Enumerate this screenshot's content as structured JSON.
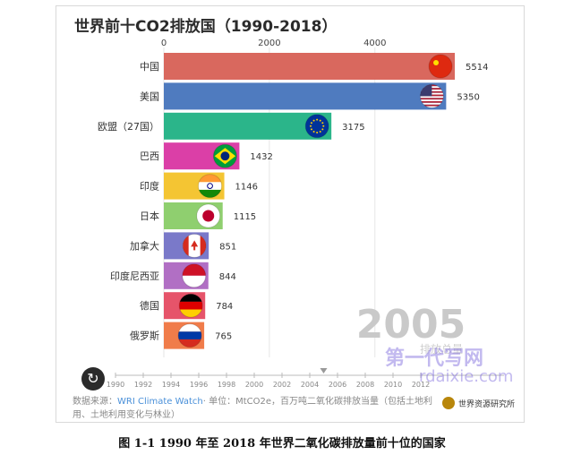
{
  "title": "世界前十CO2排放国（1990-2018）",
  "current_year": "2005",
  "current_year_subtitle": "排放总量",
  "source_prefix": "数据来源：",
  "source_link": "WRI Climate Watch",
  "source_suffix": "· 单位：MtCO2e，百万吨二氧化碳排放当量（包括土地利用、土地利用变化与林业）",
  "logo_text": "世界资源研究所",
  "watermark": "第一代写网",
  "watermark_url": "rdaixie.com",
  "caption": "图 1-1 1990 年至 2018 年世界二氧化碳排放量前十位的国家",
  "controls": {
    "play_icon": "↻"
  },
  "chart_data": {
    "type": "bar",
    "orientation": "horizontal",
    "categories": [
      "中国",
      "美国",
      "欧盟（27国）",
      "巴西",
      "印度",
      "日本",
      "加拿大",
      "印度尼西亚",
      "德国",
      "俄罗斯"
    ],
    "values": [
      5514,
      5350,
      3175,
      1432,
      1146,
      1115,
      851,
      844,
      784,
      765
    ],
    "value_labels": [
      "5514",
      "5350",
      "3175",
      "1432",
      "1146",
      "1115",
      "851",
      "844",
      "784",
      "765"
    ],
    "colors": [
      "#d9685e",
      "#4f7bbf",
      "#2bb58a",
      "#db3fa7",
      "#f4c533",
      "#8fcf6f",
      "#7a79c9",
      "#b16fc4",
      "#e6546a",
      "#f07c4a"
    ],
    "flag_icons": [
      "china-flag-icon",
      "usa-flag-icon",
      "eu-flag-icon",
      "brazil-flag-icon",
      "india-flag-icon",
      "japan-flag-icon",
      "canada-flag-icon",
      "indonesia-flag-icon",
      "germany-flag-icon",
      "russia-flag-icon"
    ],
    "xlim": [
      0,
      5700
    ],
    "x_ticks": [
      0,
      2000,
      4000
    ],
    "timeline_years": [
      "1990",
      "1992",
      "1994",
      "1996",
      "1998",
      "2000",
      "2002",
      "2004",
      "2006",
      "2008",
      "2010",
      "2012"
    ],
    "timeline_range": [
      1990,
      2018
    ],
    "legend": "none",
    "grid": true
  }
}
